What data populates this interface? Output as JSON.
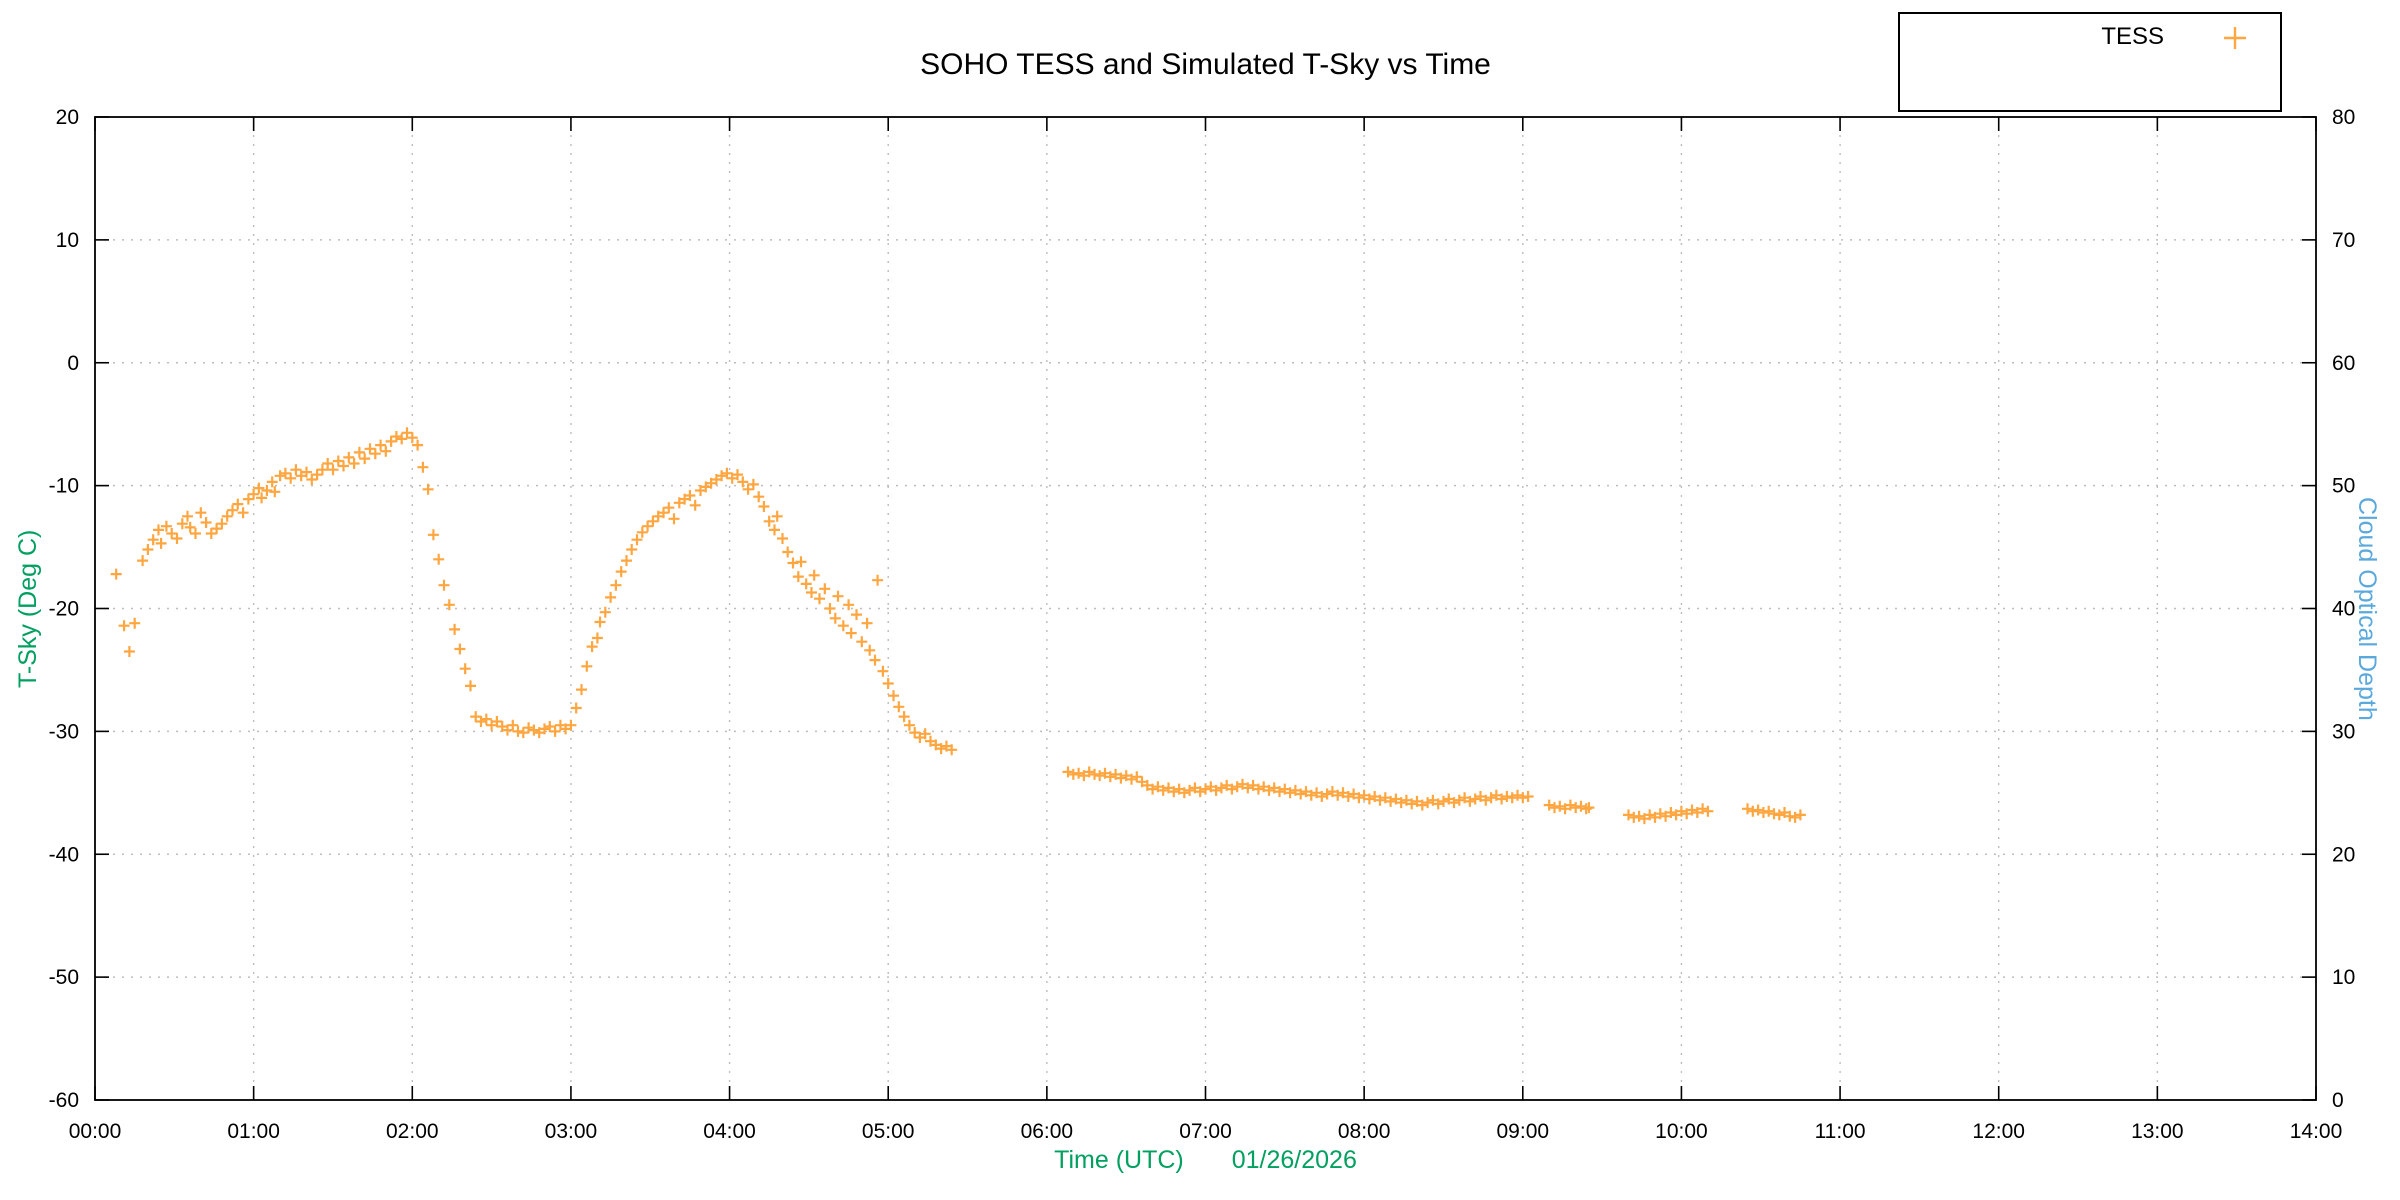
{
  "chart_data": {
    "type": "scatter",
    "title": "SOHO TESS and Simulated T-Sky vs Time",
    "xlabel": "Time (UTC)",
    "date_annotation": "01/26/2026",
    "ylabel_left": "T-Sky (Deg C)",
    "ylabel_right": "Cloud Optical Depth",
    "grid": true,
    "legend_position": "top-right",
    "xlim_minutes": [
      0,
      840
    ],
    "xticks": [
      "00:00",
      "01:00",
      "02:00",
      "03:00",
      "04:00",
      "05:00",
      "06:00",
      "07:00",
      "08:00",
      "09:00",
      "10:00",
      "11:00",
      "12:00",
      "13:00",
      "14:00"
    ],
    "ylim_left": [
      -60,
      20
    ],
    "yticks_left": [
      20,
      10,
      0,
      -10,
      -20,
      -30,
      -40,
      -50,
      -60
    ],
    "ylim_right": [
      0,
      80
    ],
    "yticks_right": [
      80,
      70,
      60,
      50,
      40,
      30,
      20,
      10,
      0
    ],
    "colors": {
      "tess": "#ffa640",
      "left_axis_label": "#00a060",
      "right_axis_label": "#5ba9dc",
      "title": "#000000"
    },
    "legend": [
      {
        "name": "TESS",
        "marker": "plus",
        "color": "#ffa640"
      }
    ],
    "series": [
      {
        "name": "TESS",
        "marker": "plus",
        "points": [
          [
            8,
            -17.2
          ],
          [
            11,
            -21.4
          ],
          [
            13,
            -23.5
          ],
          [
            15,
            -21.2
          ],
          [
            18,
            -16.1
          ],
          [
            20,
            -15.2
          ],
          [
            22,
            -14.4
          ],
          [
            24,
            -13.6
          ],
          [
            25,
            -14.7
          ],
          [
            27,
            -13.3
          ],
          [
            29,
            -13.9
          ],
          [
            31,
            -14.3
          ],
          [
            33,
            -13.1
          ],
          [
            35,
            -12.5
          ],
          [
            36,
            -13.4
          ],
          [
            38,
            -13.9
          ],
          [
            40,
            -12.2
          ],
          [
            42,
            -13.0
          ],
          [
            44,
            -13.9
          ],
          [
            46,
            -13.5
          ],
          [
            48,
            -13.1
          ],
          [
            50,
            -12.5
          ],
          [
            52,
            -12.0
          ],
          [
            54,
            -11.5
          ],
          [
            56,
            -12.2
          ],
          [
            58,
            -11.1
          ],
          [
            60,
            -10.7
          ],
          [
            62,
            -10.2
          ],
          [
            63,
            -11.0
          ],
          [
            65,
            -10.4
          ],
          [
            67,
            -9.7
          ],
          [
            68,
            -10.5
          ],
          [
            70,
            -9.2
          ],
          [
            72,
            -9.0
          ],
          [
            74,
            -9.4
          ],
          [
            76,
            -8.7
          ],
          [
            78,
            -9.2
          ],
          [
            80,
            -8.9
          ],
          [
            82,
            -9.5
          ],
          [
            84,
            -9.1
          ],
          [
            86,
            -8.7
          ],
          [
            88,
            -8.2
          ],
          [
            90,
            -8.7
          ],
          [
            92,
            -8.0
          ],
          [
            94,
            -8.4
          ],
          [
            96,
            -7.7
          ],
          [
            98,
            -8.2
          ],
          [
            100,
            -7.3
          ],
          [
            102,
            -7.8
          ],
          [
            104,
            -7.0
          ],
          [
            106,
            -7.4
          ],
          [
            108,
            -6.7
          ],
          [
            110,
            -7.2
          ],
          [
            112,
            -6.4
          ],
          [
            114,
            -6.0
          ],
          [
            116,
            -6.2
          ],
          [
            118,
            -5.7
          ],
          [
            120,
            -6.1
          ],
          [
            122,
            -6.7
          ],
          [
            124,
            -8.5
          ],
          [
            126,
            -10.3
          ],
          [
            128,
            -14.0
          ],
          [
            130,
            -16.0
          ],
          [
            132,
            -18.1
          ],
          [
            134,
            -19.7
          ],
          [
            136,
            -21.7
          ],
          [
            138,
            -23.3
          ],
          [
            140,
            -24.9
          ],
          [
            142,
            -26.3
          ],
          [
            144,
            -28.8
          ],
          [
            146,
            -29.2
          ],
          [
            148,
            -29.0
          ],
          [
            150,
            -29.5
          ],
          [
            152,
            -29.2
          ],
          [
            154,
            -29.6
          ],
          [
            156,
            -29.9
          ],
          [
            158,
            -29.5
          ],
          [
            160,
            -30.0
          ],
          [
            162,
            -30.1
          ],
          [
            164,
            -29.7
          ],
          [
            166,
            -29.9
          ],
          [
            168,
            -30.1
          ],
          [
            170,
            -29.8
          ],
          [
            172,
            -29.6
          ],
          [
            174,
            -30.0
          ],
          [
            176,
            -29.5
          ],
          [
            178,
            -29.8
          ],
          [
            180,
            -29.5
          ],
          [
            182,
            -28.1
          ],
          [
            184,
            -26.6
          ],
          [
            186,
            -24.7
          ],
          [
            188,
            -23.1
          ],
          [
            190,
            -22.4
          ],
          [
            191,
            -21.1
          ],
          [
            193,
            -20.3
          ],
          [
            195,
            -19.1
          ],
          [
            197,
            -18.1
          ],
          [
            199,
            -17.0
          ],
          [
            201,
            -16.1
          ],
          [
            203,
            -15.2
          ],
          [
            205,
            -14.4
          ],
          [
            207,
            -13.8
          ],
          [
            209,
            -13.3
          ],
          [
            211,
            -12.9
          ],
          [
            213,
            -12.5
          ],
          [
            215,
            -12.2
          ],
          [
            217,
            -11.8
          ],
          [
            219,
            -12.7
          ],
          [
            221,
            -11.4
          ],
          [
            223,
            -11.1
          ],
          [
            225,
            -10.8
          ],
          [
            227,
            -11.6
          ],
          [
            229,
            -10.4
          ],
          [
            231,
            -10.1
          ],
          [
            233,
            -9.8
          ],
          [
            235,
            -9.5
          ],
          [
            237,
            -9.2
          ],
          [
            239,
            -9.0
          ],
          [
            241,
            -9.4
          ],
          [
            243,
            -9.1
          ],
          [
            245,
            -9.7
          ],
          [
            247,
            -10.3
          ],
          [
            249,
            -9.9
          ],
          [
            251,
            -10.9
          ],
          [
            253,
            -11.7
          ],
          [
            255,
            -12.9
          ],
          [
            257,
            -13.6
          ],
          [
            258,
            -12.5
          ],
          [
            260,
            -14.3
          ],
          [
            262,
            -15.4
          ],
          [
            264,
            -16.3
          ],
          [
            266,
            -17.4
          ],
          [
            267,
            -16.2
          ],
          [
            269,
            -18.0
          ],
          [
            271,
            -18.7
          ],
          [
            272,
            -17.3
          ],
          [
            274,
            -19.2
          ],
          [
            276,
            -18.4
          ],
          [
            278,
            -20.0
          ],
          [
            280,
            -20.8
          ],
          [
            281,
            -19.0
          ],
          [
            283,
            -21.4
          ],
          [
            285,
            -19.7
          ],
          [
            286,
            -22.0
          ],
          [
            288,
            -20.5
          ],
          [
            290,
            -22.7
          ],
          [
            292,
            -21.2
          ],
          [
            293,
            -23.4
          ],
          [
            295,
            -24.2
          ],
          [
            296,
            -17.7
          ],
          [
            298,
            -25.1
          ],
          [
            300,
            -26.1
          ],
          [
            302,
            -27.1
          ],
          [
            304,
            -28.0
          ],
          [
            306,
            -28.8
          ],
          [
            308,
            -29.5
          ],
          [
            310,
            -30.1
          ],
          [
            312,
            -30.5
          ],
          [
            314,
            -30.2
          ],
          [
            316,
            -30.8
          ],
          [
            318,
            -31.1
          ],
          [
            320,
            -31.4
          ],
          [
            322,
            -31.2
          ],
          [
            324,
            -31.5
          ],
          [
            368,
            -33.3
          ],
          [
            370,
            -33.5
          ],
          [
            372,
            -33.4
          ],
          [
            374,
            -33.6
          ],
          [
            376,
            -33.3
          ],
          [
            378,
            -33.5
          ],
          [
            380,
            -33.6
          ],
          [
            382,
            -33.4
          ],
          [
            384,
            -33.7
          ],
          [
            386,
            -33.5
          ],
          [
            388,
            -33.8
          ],
          [
            390,
            -33.6
          ],
          [
            392,
            -33.9
          ],
          [
            394,
            -33.7
          ],
          [
            396,
            -34.1
          ],
          [
            398,
            -34.4
          ],
          [
            400,
            -34.7
          ],
          [
            402,
            -34.5
          ],
          [
            404,
            -34.8
          ],
          [
            406,
            -34.6
          ],
          [
            408,
            -34.9
          ],
          [
            410,
            -34.7
          ],
          [
            412,
            -35.0
          ],
          [
            414,
            -34.8
          ],
          [
            416,
            -34.6
          ],
          [
            418,
            -34.9
          ],
          [
            420,
            -34.7
          ],
          [
            422,
            -34.5
          ],
          [
            424,
            -34.8
          ],
          [
            426,
            -34.6
          ],
          [
            428,
            -34.4
          ],
          [
            430,
            -34.7
          ],
          [
            432,
            -34.5
          ],
          [
            434,
            -34.3
          ],
          [
            436,
            -34.6
          ],
          [
            438,
            -34.4
          ],
          [
            440,
            -34.7
          ],
          [
            442,
            -34.5
          ],
          [
            444,
            -34.8
          ],
          [
            446,
            -34.6
          ],
          [
            448,
            -34.9
          ],
          [
            450,
            -34.7
          ],
          [
            452,
            -35.0
          ],
          [
            454,
            -34.8
          ],
          [
            456,
            -35.1
          ],
          [
            458,
            -34.9
          ],
          [
            460,
            -35.2
          ],
          [
            462,
            -35.0
          ],
          [
            464,
            -35.3
          ],
          [
            466,
            -35.1
          ],
          [
            468,
            -34.9
          ],
          [
            470,
            -35.2
          ],
          [
            472,
            -35.0
          ],
          [
            474,
            -35.3
          ],
          [
            476,
            -35.1
          ],
          [
            478,
            -35.4
          ],
          [
            480,
            -35.2
          ],
          [
            482,
            -35.5
          ],
          [
            484,
            -35.3
          ],
          [
            486,
            -35.6
          ],
          [
            488,
            -35.4
          ],
          [
            490,
            -35.7
          ],
          [
            492,
            -35.5
          ],
          [
            494,
            -35.8
          ],
          [
            496,
            -35.6
          ],
          [
            498,
            -35.9
          ],
          [
            500,
            -35.7
          ],
          [
            502,
            -36.0
          ],
          [
            504,
            -35.8
          ],
          [
            506,
            -35.6
          ],
          [
            508,
            -35.9
          ],
          [
            510,
            -35.7
          ],
          [
            512,
            -35.5
          ],
          [
            514,
            -35.8
          ],
          [
            516,
            -35.6
          ],
          [
            518,
            -35.4
          ],
          [
            520,
            -35.7
          ],
          [
            522,
            -35.5
          ],
          [
            524,
            -35.3
          ],
          [
            526,
            -35.6
          ],
          [
            528,
            -35.4
          ],
          [
            530,
            -35.2
          ],
          [
            532,
            -35.5
          ],
          [
            534,
            -35.3
          ],
          [
            536,
            -35.4
          ],
          [
            538,
            -35.2
          ],
          [
            540,
            -35.4
          ],
          [
            542,
            -35.3
          ],
          [
            550,
            -36.0
          ],
          [
            552,
            -36.2
          ],
          [
            554,
            -36.1
          ],
          [
            556,
            -36.3
          ],
          [
            558,
            -36.0
          ],
          [
            560,
            -36.2
          ],
          [
            562,
            -36.1
          ],
          [
            564,
            -36.3
          ],
          [
            565,
            -36.2
          ],
          [
            580,
            -36.8
          ],
          [
            582,
            -37.0
          ],
          [
            584,
            -36.9
          ],
          [
            586,
            -37.1
          ],
          [
            588,
            -36.8
          ],
          [
            590,
            -37.0
          ],
          [
            592,
            -36.7
          ],
          [
            594,
            -36.9
          ],
          [
            596,
            -36.6
          ],
          [
            598,
            -36.8
          ],
          [
            600,
            -36.5
          ],
          [
            602,
            -36.7
          ],
          [
            604,
            -36.4
          ],
          [
            606,
            -36.6
          ],
          [
            608,
            -36.3
          ],
          [
            610,
            -36.5
          ],
          [
            625,
            -36.3
          ],
          [
            627,
            -36.5
          ],
          [
            629,
            -36.4
          ],
          [
            631,
            -36.6
          ],
          [
            633,
            -36.5
          ],
          [
            635,
            -36.7
          ],
          [
            637,
            -36.8
          ],
          [
            639,
            -36.6
          ],
          [
            641,
            -36.9
          ],
          [
            643,
            -37.0
          ],
          [
            645,
            -36.8
          ]
        ]
      }
    ]
  }
}
